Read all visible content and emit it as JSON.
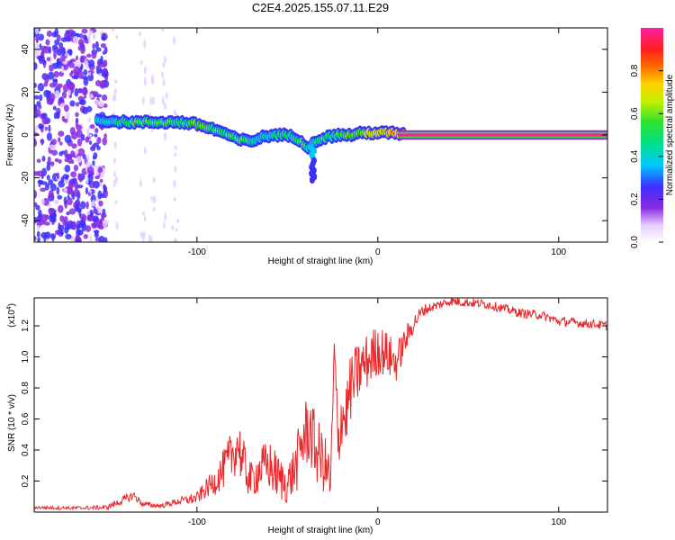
{
  "chart_data": [
    {
      "type": "heatmap",
      "title": "C2E4.2025.155.07.11.E29",
      "xlabel": "Height of straight line (km)",
      "ylabel": "Frequency (Hz)",
      "xlim": [
        -190,
        127
      ],
      "ylim": [
        -50,
        50
      ],
      "xticks": [
        -100,
        0,
        100
      ],
      "yticks": [
        -40,
        -20,
        0,
        20,
        40
      ],
      "colorbar": {
        "label": "Normalized spectral amplitude",
        "range": [
          0,
          1
        ],
        "ticks": [
          0.0,
          0.2,
          0.4,
          0.6,
          0.8
        ]
      },
      "ridge": {
        "x": [
          -155,
          -140,
          -125,
          -110,
          -100,
          -92,
          -85,
          -78,
          -70,
          -64,
          -58,
          -52,
          -46,
          -42,
          -38,
          -35,
          -32,
          -28,
          -22,
          -15,
          -8,
          0,
          5,
          10,
          15,
          40,
          80,
          127
        ],
        "y": [
          7,
          6,
          6,
          6,
          5,
          3,
          1,
          -2,
          -3,
          -1,
          0,
          0,
          -1,
          -3,
          -6,
          -3,
          -2,
          -1,
          0,
          0,
          1,
          1,
          1,
          1,
          0,
          0,
          0,
          0
        ],
        "amplitude": [
          0.4,
          0.55,
          0.6,
          0.55,
          0.65,
          0.6,
          0.55,
          0.6,
          0.55,
          0.45,
          0.5,
          0.55,
          0.5,
          0.6,
          0.45,
          0.5,
          0.55,
          0.6,
          0.6,
          0.65,
          0.7,
          0.75,
          0.8,
          0.85,
          0.95,
          1.0,
          1.0,
          1.0
        ]
      },
      "noise_region_x": [
        -190,
        -150
      ],
      "streak_x": [
        -160,
        -145,
        -130,
        -125,
        -118,
        -112
      ]
    },
    {
      "type": "line",
      "xlabel": "Height of straight line (km)",
      "ylabel": "SNR (10 * v/v)",
      "yscale_label": "(x10",
      "yscale_exp": "4",
      "xlim": [
        -190,
        127
      ],
      "ylim": [
        0,
        13800
      ],
      "xticks": [
        -100,
        0,
        100
      ],
      "yticks": [
        2000,
        4000,
        6000,
        8000,
        10000,
        12000
      ],
      "ytick_labels": [
        "0.2",
        "0.4",
        "0.6",
        "0.8",
        "1.0",
        "1.2"
      ],
      "series": [
        {
          "color": "#e8282a",
          "x": [
            -190,
            -170,
            -150,
            -140,
            -135,
            -130,
            -120,
            -110,
            -100,
            -95,
            -90,
            -85,
            -80,
            -77,
            -75,
            -72,
            -70,
            -65,
            -60,
            -55,
            -50,
            -45,
            -42,
            -38,
            -35,
            -30,
            -26,
            -24,
            -22,
            -20,
            -18,
            -15,
            -10,
            -5,
            0,
            5,
            10,
            15,
            20,
            25,
            30,
            35,
            40,
            50,
            60,
            70,
            80,
            90,
            95,
            100,
            110,
            120,
            127
          ],
          "y": [
            300,
            250,
            300,
            800,
            1100,
            500,
            400,
            700,
            900,
            1500,
            2000,
            2800,
            3800,
            4500,
            3200,
            2500,
            2000,
            2800,
            3000,
            2200,
            1800,
            3000,
            4500,
            5500,
            4200,
            3200,
            2000,
            10500,
            4000,
            6500,
            6000,
            8000,
            9200,
            9800,
            10500,
            10200,
            9600,
            11000,
            12200,
            13000,
            13200,
            13400,
            13600,
            13500,
            13400,
            13100,
            12800,
            12700,
            12500,
            12300,
            12200,
            12100,
            12000
          ],
          "noise_amplitude": [
            100,
            120,
            150,
            300,
            300,
            200,
            150,
            250,
            400,
            600,
            900,
            1300,
            1700,
            1800,
            1700,
            1400,
            1200,
            1500,
            1700,
            1500,
            1300,
            1800,
            2200,
            2500,
            2300,
            2000,
            1800,
            2000,
            2200,
            2200,
            2200,
            2200,
            2000,
            1800,
            1700,
            1500,
            1300,
            900,
            600,
            400,
            300,
            300,
            300,
            300,
            300,
            300,
            300,
            300,
            300,
            300,
            300,
            300,
            300
          ]
        }
      ]
    }
  ]
}
